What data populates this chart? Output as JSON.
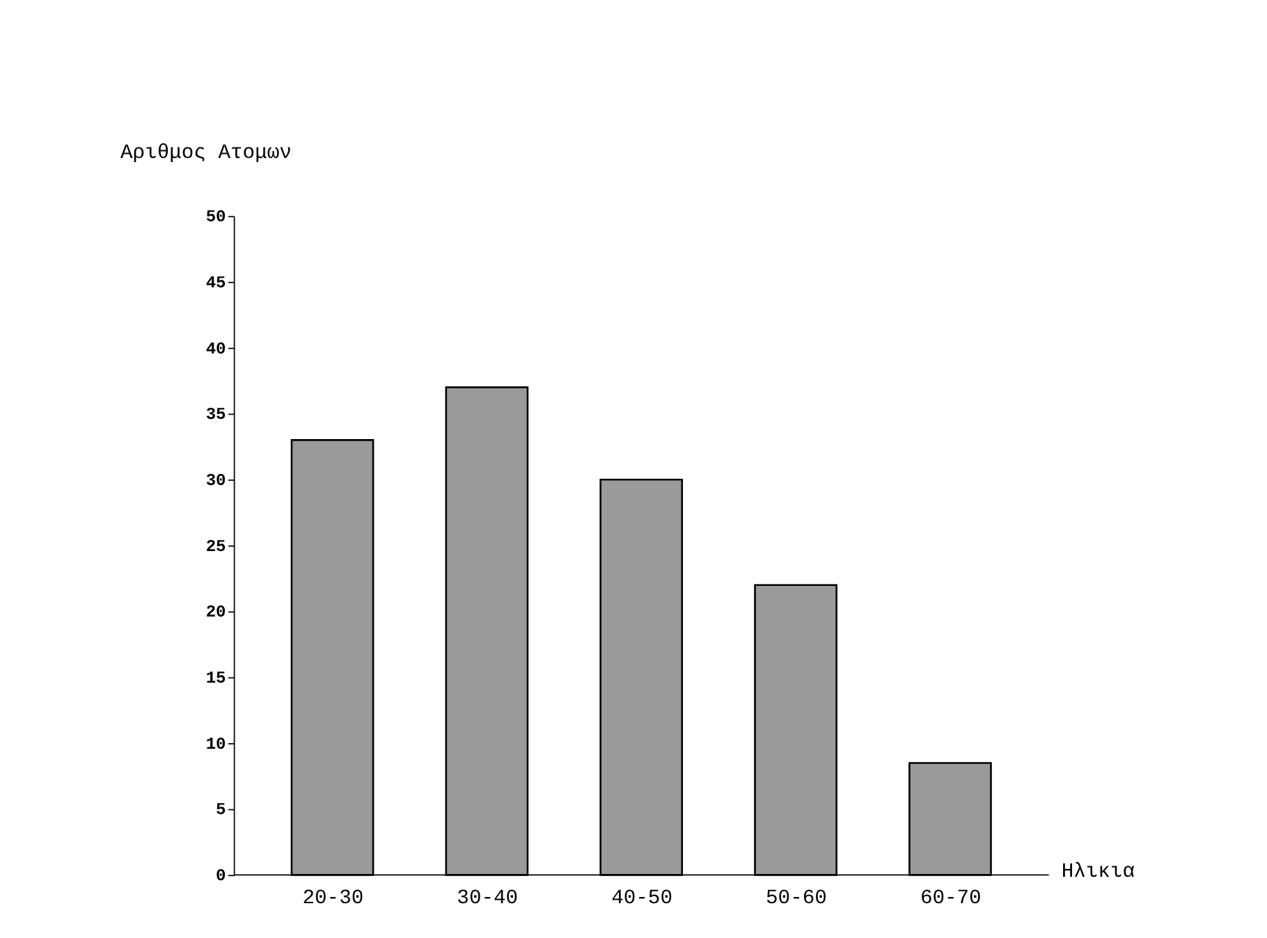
{
  "chart_data": {
    "type": "bar",
    "xlabel": "Ηλικια",
    "ylabel": "Αριθμος Ατομων",
    "categories": [
      "20-30",
      "30-40",
      "40-50",
      "50-60",
      "60-70"
    ],
    "values": [
      33,
      37,
      30,
      22,
      8.5
    ],
    "color": "#9a9a9a",
    "ylim": [
      0,
      50
    ],
    "yticks": [
      0,
      5,
      10,
      15,
      20,
      25,
      30,
      35,
      40,
      45,
      50
    ],
    "grid": false
  }
}
